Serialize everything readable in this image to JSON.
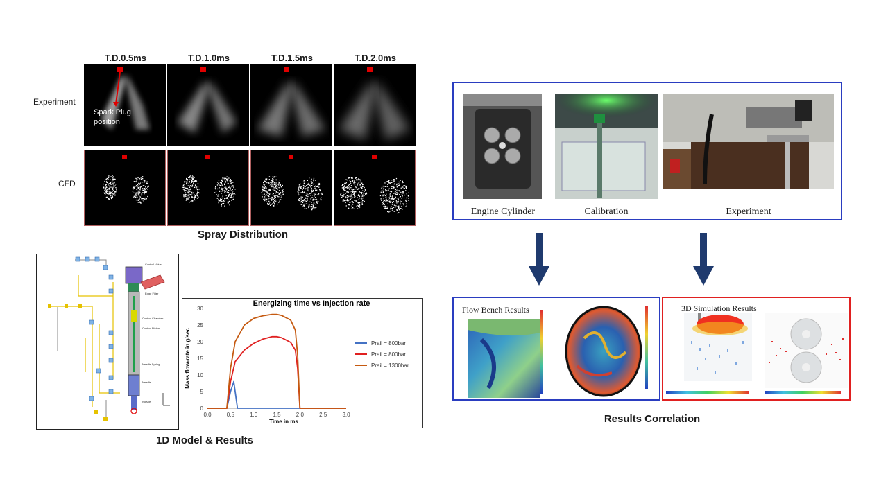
{
  "spray": {
    "time_labels": [
      "T.D.0.5ms",
      "T.D.1.0ms",
      "T.D.1.5ms",
      "T.D.2.0ms"
    ],
    "row_experiment": "Experiment",
    "row_cfd": "CFD",
    "annotation_line1": "Spark Plug",
    "annotation_line2": "position",
    "caption": "Spray Distribution"
  },
  "model1d": {
    "caption": "1D Model & Results",
    "labels": [
      "Control Valve",
      "Edge Filter",
      "Control Chamber",
      "Control Piston",
      "Needle Spring",
      "Needle",
      "Nozzle"
    ]
  },
  "chart_data": {
    "type": "line",
    "title": "Energizing time vs Injection rate",
    "xlabel": "Time in ms",
    "ylabel": "Mass flow-rate in g/sec",
    "xlim": [
      0.0,
      3.0
    ],
    "ylim": [
      0,
      30
    ],
    "xticks": [
      "0.0",
      "0.5",
      "1.0",
      "1.5",
      "2.0",
      "2.5",
      "3.0"
    ],
    "yticks": [
      "0",
      "5",
      "10",
      "15",
      "20",
      "25",
      "30"
    ],
    "grid": false,
    "legend_position": "right",
    "series": [
      {
        "name": "Prail = 800bar",
        "color": "#4472c4",
        "x": [
          0.0,
          0.42,
          0.5,
          0.57,
          0.6,
          0.65,
          0.7,
          3.0
        ],
        "y": [
          0,
          0,
          5,
          8,
          5,
          0,
          0,
          0
        ]
      },
      {
        "name": "Prail = 800bar",
        "color": "#e02020",
        "x": [
          0.0,
          0.42,
          0.5,
          0.6,
          0.8,
          1.0,
          1.2,
          1.4,
          1.5,
          1.6,
          1.8,
          1.9,
          1.95,
          2.0,
          3.0
        ],
        "y": [
          0,
          0,
          8,
          14,
          17.5,
          19.5,
          20.8,
          21.5,
          21.5,
          21.2,
          19.8,
          17.5,
          12,
          0,
          0
        ]
      },
      {
        "name": "Prail = 1300bar",
        "color": "#c55a11",
        "x": [
          0.0,
          0.42,
          0.5,
          0.6,
          0.8,
          1.0,
          1.2,
          1.4,
          1.5,
          1.6,
          1.8,
          1.9,
          1.95,
          2.0,
          3.0
        ],
        "y": [
          0,
          0,
          12,
          20,
          25,
          27,
          27.8,
          28.2,
          28.2,
          27.9,
          26.5,
          23.5,
          16,
          0,
          0
        ]
      }
    ]
  },
  "experiment": {
    "labels": [
      "Engine Cylinder",
      "Calibration",
      "Experiment"
    ],
    "border_color": "#2a3dc0"
  },
  "results": {
    "flow_bench_title": "Flow Bench Results",
    "sim_title": "3D Simulation Results",
    "caption": "Results Correlation",
    "blue_border": "#2a3dc0",
    "red_border": "#e02020"
  },
  "arrow_color": "#1f3a6e"
}
